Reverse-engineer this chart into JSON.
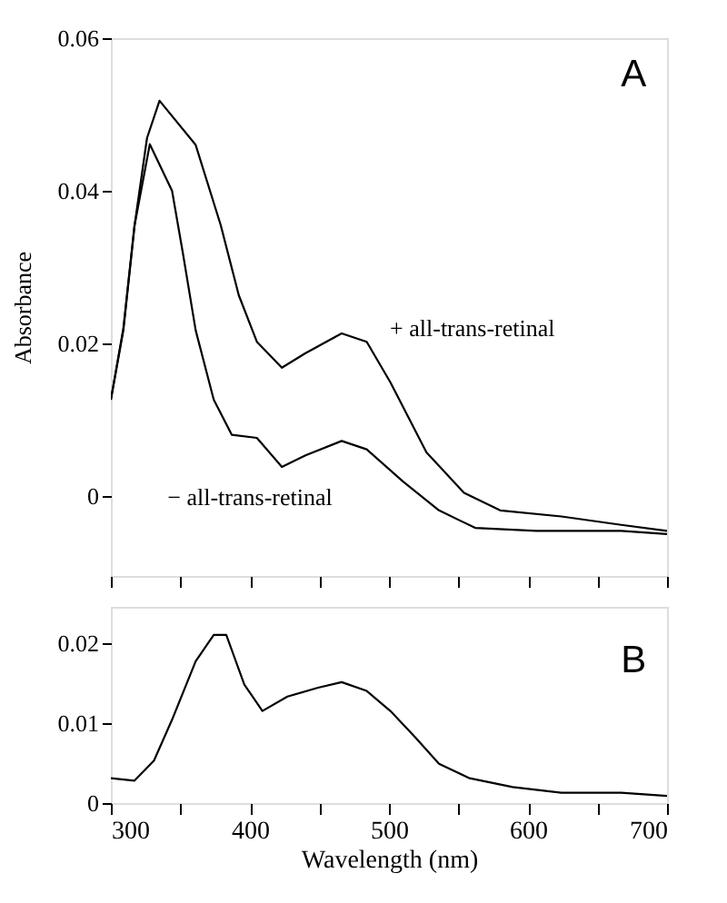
{
  "chart_data": [
    {
      "type": "line",
      "ylabel": "Absorbance",
      "xlim": [
        300,
        700
      ],
      "ylim": [
        -0.0105,
        0.06
      ],
      "xticks": [
        {
          "value": 300,
          "label": null
        },
        {
          "value": 350,
          "label": null
        },
        {
          "value": 400,
          "label": null
        },
        {
          "value": 450,
          "label": null
        },
        {
          "value": 500,
          "label": null
        },
        {
          "value": 550,
          "label": null
        },
        {
          "value": 600,
          "label": null
        },
        {
          "value": 650,
          "label": null
        },
        {
          "value": 700,
          "label": null
        }
      ],
      "yticks": [
        {
          "value": 0,
          "label": "0"
        },
        0.02,
        0.04,
        0.06
      ],
      "tick_labels": "y",
      "grid": false,
      "marker": "none",
      "line_style": "solid",
      "series": [
        {
          "color": "#000000",
          "x": [
            300,
            309,
            317,
            326,
            335,
            361,
            379,
            392,
            405,
            423,
            440,
            466,
            484,
            501,
            527,
            554,
            580,
            624,
            667,
            700
          ],
          "values": [
            0.0126,
            0.0217,
            0.0354,
            0.0469,
            0.0518,
            0.046,
            0.0355,
            0.0263,
            0.0202,
            0.0168,
            0.0187,
            0.0213,
            0.0202,
            0.0149,
            0.0057,
            0.0004,
            -0.0019,
            -0.0027,
            -0.0038,
            -0.0046
          ]
        },
        {
          "color": "#000000",
          "x": [
            300,
            309,
            317,
            328,
            344,
            352,
            361,
            374,
            387,
            405,
            423,
            440,
            466,
            484,
            510,
            536,
            562,
            606,
            667,
            700
          ],
          "values": [
            0.0126,
            0.022,
            0.0354,
            0.0461,
            0.04,
            0.0316,
            0.0217,
            0.0126,
            0.008,
            0.0076,
            0.0038,
            0.0053,
            0.0072,
            0.0061,
            0.0019,
            -0.0019,
            -0.0042,
            -0.0046,
            -0.0046,
            -0.005
          ]
        }
      ],
      "annotations": [
        "A",
        "+ all-trans-retinal",
        "− all-trans-retinal"
      ]
    },
    {
      "type": "line",
      "xlabel": "Wavelength  (nm)",
      "xlim": [
        300,
        700
      ],
      "ylim": [
        0,
        0.0245
      ],
      "xticks": [
        300,
        {
          "value": 350,
          "label": null
        },
        400,
        {
          "value": 450,
          "label": null
        },
        500,
        {
          "value": 550,
          "label": null
        },
        600,
        {
          "value": 650,
          "label": null
        },
        700
      ],
      "yticks": [
        {
          "value": 0,
          "label": "0"
        },
        0.01,
        0.02
      ],
      "grid": false,
      "marker": "none",
      "line_style": "solid",
      "series": [
        {
          "color": "#000000",
          "x": [
            300,
            317,
            331,
            344,
            361,
            374,
            383,
            396,
            409,
            427,
            449,
            466,
            484,
            501,
            519,
            536,
            558,
            589,
            624,
            667,
            700
          ],
          "values": [
            0.0031,
            0.0028,
            0.0053,
            0.0104,
            0.0177,
            0.021,
            0.021,
            0.0148,
            0.0115,
            0.0133,
            0.0144,
            0.0151,
            0.014,
            0.0115,
            0.0082,
            0.0049,
            0.0031,
            0.002,
            0.0013,
            0.0013,
            0.0009
          ]
        }
      ],
      "annotations": [
        "B"
      ]
    }
  ]
}
